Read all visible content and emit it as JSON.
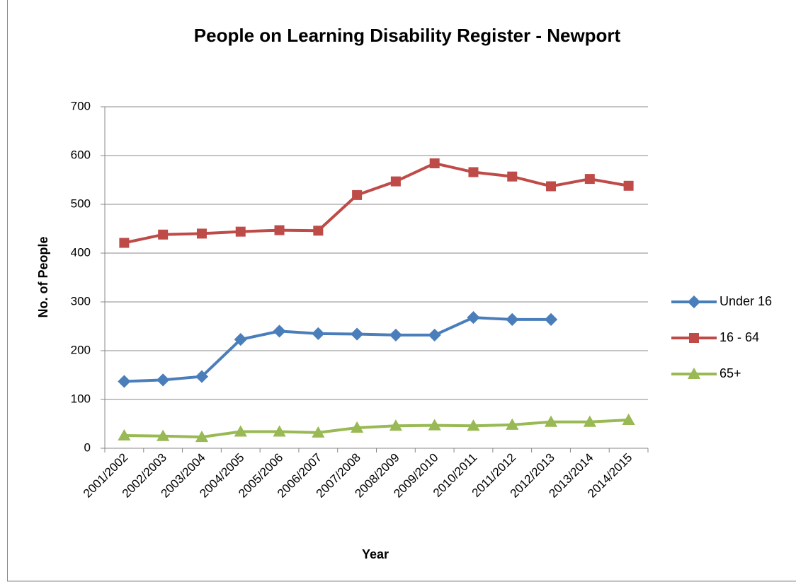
{
  "chart_data": {
    "type": "line",
    "title": "People on Learning Disability Register - Newport",
    "x_label": "Year",
    "y_label": "No. of People",
    "categories": [
      "2001/2002",
      "2002/2003",
      "2003/2004",
      "2004/2005",
      "2005/2006",
      "2006/2007",
      "2007/2008",
      "2008/2009",
      "2009/2010",
      "2010/2011",
      "2011/2012",
      "2012/2013",
      "2013/2014",
      "2014/2015"
    ],
    "series": [
      {
        "name": "Under 16",
        "color": "#4a7ebb",
        "marker": "diamond",
        "values": [
          137,
          140,
          147,
          223,
          240,
          235,
          234,
          232,
          232,
          268,
          264,
          264,
          null,
          null
        ]
      },
      {
        "name": "16 - 64",
        "color": "#be4b48",
        "marker": "square",
        "values": [
          421,
          438,
          440,
          444,
          447,
          446,
          519,
          547,
          584,
          566,
          557,
          537,
          552,
          538
        ]
      },
      {
        "name": "65+",
        "color": "#98b954",
        "marker": "triangle",
        "values": [
          26,
          25,
          23,
          34,
          34,
          32,
          42,
          46,
          47,
          46,
          48,
          54,
          54,
          58
        ]
      }
    ],
    "ylim": [
      0,
      700
    ],
    "yticks": [
      0,
      100,
      200,
      300,
      400,
      500,
      600,
      700
    ],
    "grid": true,
    "legend": "right"
  }
}
